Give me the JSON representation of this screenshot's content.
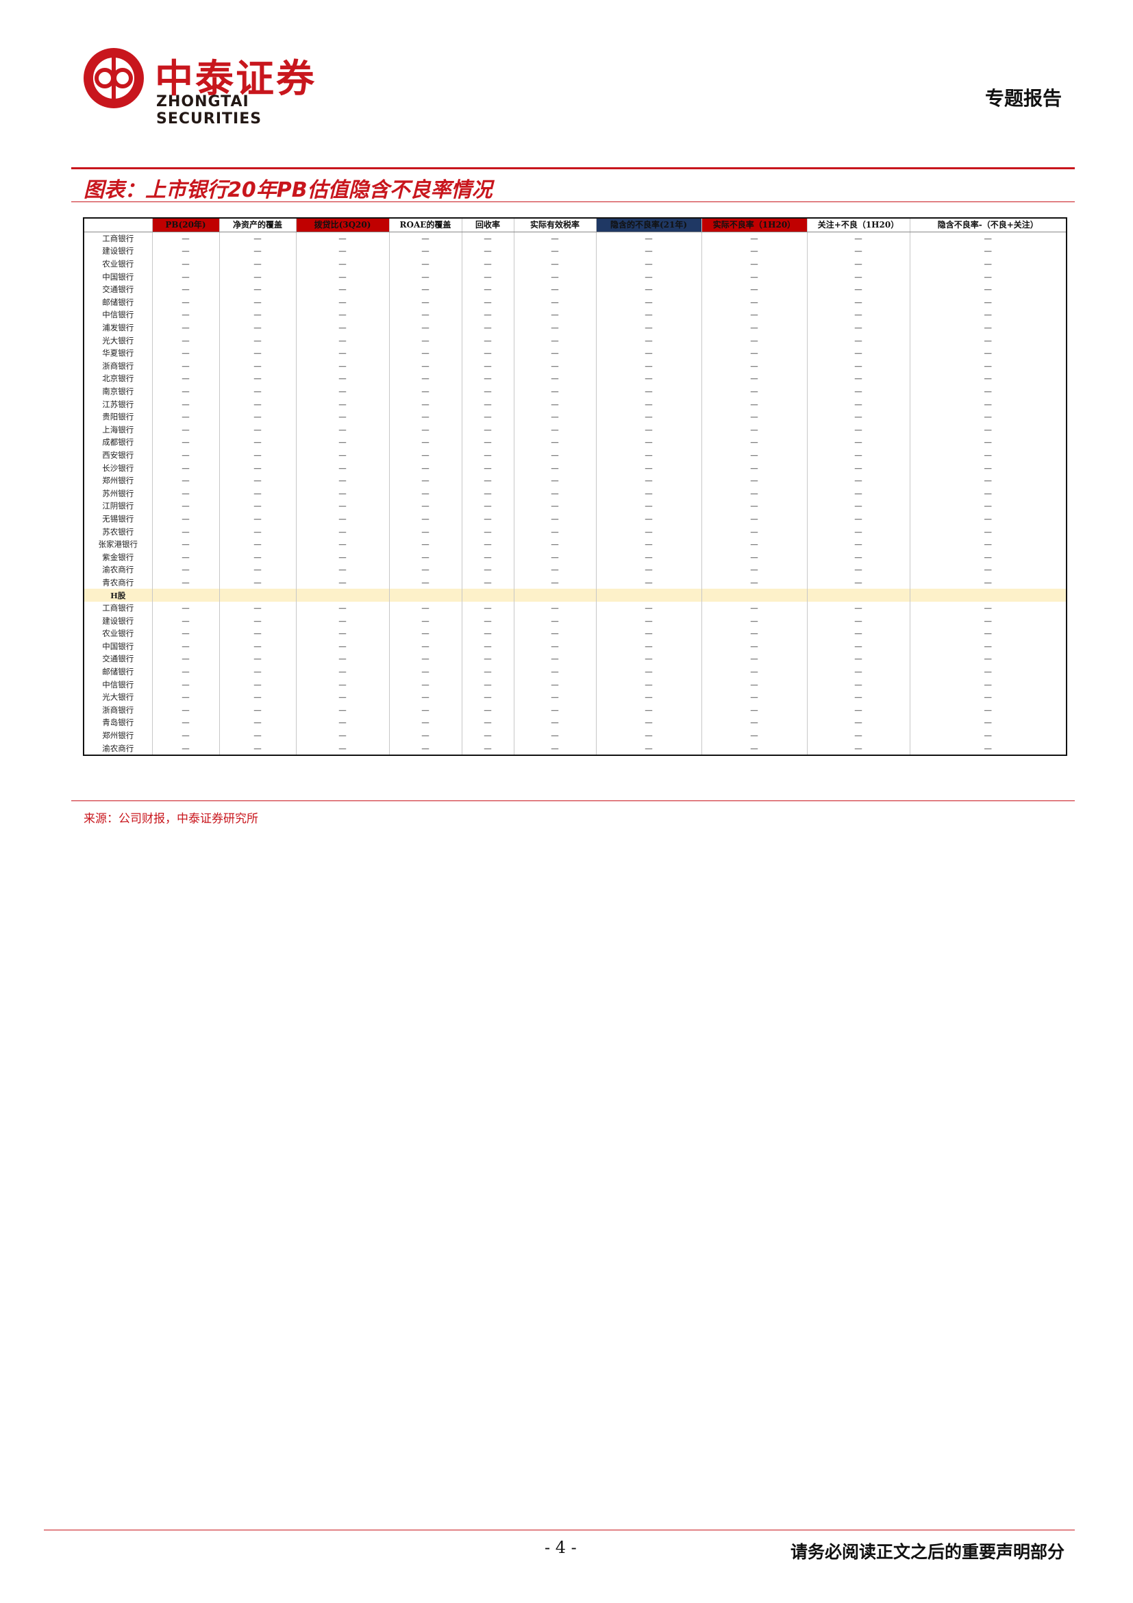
{
  "header": {
    "logo_cn": "中泰证券",
    "logo_en": "ZHONGTAI SECURITIES",
    "report_type": "专题报告"
  },
  "colors": {
    "brand_red": "#c8161d",
    "header_red": "#c00000",
    "header_navy": "#1f3864"
  },
  "title": "图表：上市银行20年PB估值隐含不良率情况",
  "columns": [
    "",
    "PB(20年)",
    "净资产的覆盖",
    "拨贷比(3Q20)",
    "ROAE的覆盖",
    "回收率",
    "实际有效税率",
    "隐含的不良率(21年)",
    "实际不良率（1H20）",
    "关注+不良（1H20）",
    "隐含不良率-（不良+关注）"
  ],
  "rows_a": [
    {
      "bank": "工商银行",
      "values": [
        "—",
        "—",
        "—",
        "—",
        "—",
        "—",
        "—",
        "—",
        "—",
        "—"
      ]
    },
    {
      "bank": "建设银行",
      "values": [
        "—",
        "—",
        "—",
        "—",
        "—",
        "—",
        "—",
        "—",
        "—",
        "—"
      ]
    },
    {
      "bank": "农业银行",
      "values": [
        "—",
        "—",
        "—",
        "—",
        "—",
        "—",
        "—",
        "—",
        "—",
        "—"
      ]
    },
    {
      "bank": "中国银行",
      "values": [
        "—",
        "—",
        "—",
        "—",
        "—",
        "—",
        "—",
        "—",
        "—",
        "—"
      ]
    },
    {
      "bank": "交通银行",
      "values": [
        "—",
        "—",
        "—",
        "—",
        "—",
        "—",
        "—",
        "—",
        "—",
        "—"
      ]
    },
    {
      "bank": "邮储银行",
      "values": [
        "—",
        "—",
        "—",
        "—",
        "—",
        "—",
        "—",
        "—",
        "—",
        "—"
      ]
    },
    {
      "bank": "中信银行",
      "values": [
        "—",
        "—",
        "—",
        "—",
        "—",
        "—",
        "—",
        "—",
        "—",
        "—"
      ]
    },
    {
      "bank": "浦发银行",
      "values": [
        "—",
        "—",
        "—",
        "—",
        "—",
        "—",
        "—",
        "—",
        "—",
        "—"
      ]
    },
    {
      "bank": "光大银行",
      "values": [
        "—",
        "—",
        "—",
        "—",
        "—",
        "—",
        "—",
        "—",
        "—",
        "—"
      ]
    },
    {
      "bank": "华夏银行",
      "values": [
        "—",
        "—",
        "—",
        "—",
        "—",
        "—",
        "—",
        "—",
        "—",
        "—"
      ]
    },
    {
      "bank": "浙商银行",
      "values": [
        "—",
        "—",
        "—",
        "—",
        "—",
        "—",
        "—",
        "—",
        "—",
        "—"
      ]
    },
    {
      "bank": "北京银行",
      "values": [
        "—",
        "—",
        "—",
        "—",
        "—",
        "—",
        "—",
        "—",
        "—",
        "—"
      ]
    },
    {
      "bank": "南京银行",
      "values": [
        "—",
        "—",
        "—",
        "—",
        "—",
        "—",
        "—",
        "—",
        "—",
        "—"
      ]
    },
    {
      "bank": "江苏银行",
      "values": [
        "—",
        "—",
        "—",
        "—",
        "—",
        "—",
        "—",
        "—",
        "—",
        "—"
      ]
    },
    {
      "bank": "贵阳银行",
      "values": [
        "—",
        "—",
        "—",
        "—",
        "—",
        "—",
        "—",
        "—",
        "—",
        "—"
      ]
    },
    {
      "bank": "上海银行",
      "values": [
        "—",
        "—",
        "—",
        "—",
        "—",
        "—",
        "—",
        "—",
        "—",
        "—"
      ]
    },
    {
      "bank": "成都银行",
      "values": [
        "—",
        "—",
        "—",
        "—",
        "—",
        "—",
        "—",
        "—",
        "—",
        "—"
      ]
    },
    {
      "bank": "西安银行",
      "values": [
        "—",
        "—",
        "—",
        "—",
        "—",
        "—",
        "—",
        "—",
        "—",
        "—"
      ]
    },
    {
      "bank": "长沙银行",
      "values": [
        "—",
        "—",
        "—",
        "—",
        "—",
        "—",
        "—",
        "—",
        "—",
        "—"
      ]
    },
    {
      "bank": "郑州银行",
      "values": [
        "—",
        "—",
        "—",
        "—",
        "—",
        "—",
        "—",
        "—",
        "—",
        "—"
      ]
    },
    {
      "bank": "苏州银行",
      "values": [
        "—",
        "—",
        "—",
        "—",
        "—",
        "—",
        "—",
        "—",
        "—",
        "—"
      ]
    },
    {
      "bank": "江阴银行",
      "values": [
        "—",
        "—",
        "—",
        "—",
        "—",
        "—",
        "—",
        "—",
        "—",
        "—"
      ]
    },
    {
      "bank": "无锡银行",
      "values": [
        "—",
        "—",
        "—",
        "—",
        "—",
        "—",
        "—",
        "—",
        "—",
        "—"
      ]
    },
    {
      "bank": "苏农银行",
      "values": [
        "—",
        "—",
        "—",
        "—",
        "—",
        "—",
        "—",
        "—",
        "—",
        "—"
      ]
    },
    {
      "bank": "张家港银行",
      "values": [
        "—",
        "—",
        "—",
        "—",
        "—",
        "—",
        "—",
        "—",
        "—",
        "—"
      ]
    },
    {
      "bank": "紫金银行",
      "values": [
        "—",
        "—",
        "—",
        "—",
        "—",
        "—",
        "—",
        "—",
        "—",
        "—"
      ]
    },
    {
      "bank": "渝农商行",
      "values": [
        "—",
        "—",
        "—",
        "—",
        "—",
        "—",
        "—",
        "—",
        "—",
        "—"
      ]
    },
    {
      "bank": "青农商行",
      "values": [
        "—",
        "—",
        "—",
        "—",
        "—",
        "—",
        "—",
        "—",
        "—",
        "—"
      ]
    }
  ],
  "h_label": "H股",
  "rows_h": [
    {
      "bank": "工商银行",
      "values": [
        "—",
        "—",
        "—",
        "—",
        "—",
        "—",
        "—",
        "—",
        "—",
        "—"
      ]
    },
    {
      "bank": "建设银行",
      "values": [
        "—",
        "—",
        "—",
        "—",
        "—",
        "—",
        "—",
        "—",
        "—",
        "—"
      ]
    },
    {
      "bank": "农业银行",
      "values": [
        "—",
        "—",
        "—",
        "—",
        "—",
        "—",
        "—",
        "—",
        "—",
        "—"
      ]
    },
    {
      "bank": "中国银行",
      "values": [
        "—",
        "—",
        "—",
        "—",
        "—",
        "—",
        "—",
        "—",
        "—",
        "—"
      ]
    },
    {
      "bank": "交通银行",
      "values": [
        "—",
        "—",
        "—",
        "—",
        "—",
        "—",
        "—",
        "—",
        "—",
        "—"
      ]
    },
    {
      "bank": "邮储银行",
      "values": [
        "—",
        "—",
        "—",
        "—",
        "—",
        "—",
        "—",
        "—",
        "—",
        "—"
      ]
    },
    {
      "bank": "中信银行",
      "values": [
        "—",
        "—",
        "—",
        "—",
        "—",
        "—",
        "—",
        "—",
        "—",
        "—"
      ]
    },
    {
      "bank": "光大银行",
      "values": [
        "—",
        "—",
        "—",
        "—",
        "—",
        "—",
        "—",
        "—",
        "—",
        "—"
      ]
    },
    {
      "bank": "浙商银行",
      "values": [
        "—",
        "—",
        "—",
        "—",
        "—",
        "—",
        "—",
        "—",
        "—",
        "—"
      ]
    },
    {
      "bank": "青岛银行",
      "values": [
        "—",
        "—",
        "—",
        "—",
        "—",
        "—",
        "—",
        "—",
        "—",
        "—"
      ]
    },
    {
      "bank": "郑州银行",
      "values": [
        "—",
        "—",
        "—",
        "—",
        "—",
        "—",
        "—",
        "—",
        "—",
        "—"
      ]
    },
    {
      "bank": "渝农商行",
      "values": [
        "—",
        "—",
        "—",
        "—",
        "—",
        "—",
        "—",
        "—",
        "—",
        "—"
      ]
    }
  ],
  "source": "来源：公司财报，中泰证券研究所",
  "footer": {
    "page": "- 4 -",
    "disclaimer": "请务必阅读正文之后的重要声明部分"
  }
}
